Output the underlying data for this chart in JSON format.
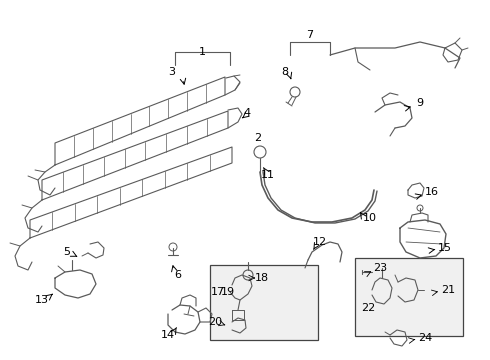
{
  "bg_color": "#ffffff",
  "line_color": "#5a5a5a",
  "text_color": "#000000",
  "fig_width": 4.9,
  "fig_height": 3.6,
  "dpi": 100
}
